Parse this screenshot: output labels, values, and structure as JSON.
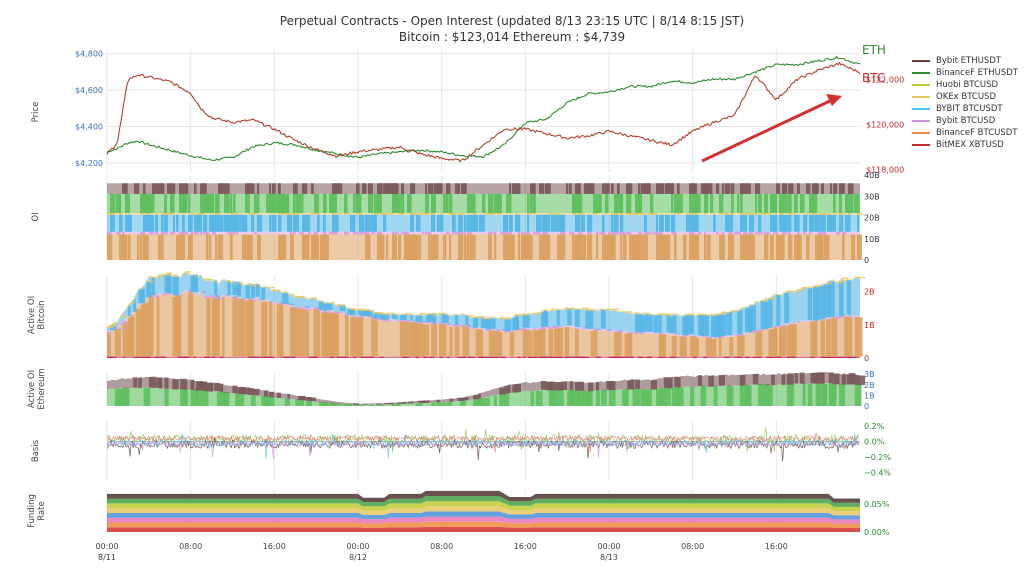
{
  "header": {
    "title": "Perpetual Contracts - Open Interest   (updated   8/13 23:15 UTC   |   8/14 8:15 JST)",
    "subtitle": "Bitcoin : $123,014     Ethereum : $4,739"
  },
  "colors": {
    "eth_line": "#2e8b2e",
    "btc_line": "#b0412e",
    "arrow": "#d32f2f",
    "left_axis": "#3b6fc4",
    "right_axis_btc": "#c62828",
    "grid": "#e6e6e6"
  },
  "chart_data": [
    {
      "id": "price",
      "type": "line",
      "ylabel": "Price",
      "x_range_hours": [
        0,
        72
      ],
      "x_ticks": [
        {
          "h": 0,
          "label": "00:00",
          "sub": "8/11"
        },
        {
          "h": 8,
          "label": "08:00",
          "sub": ""
        },
        {
          "h": 16,
          "label": "16:00",
          "sub": ""
        },
        {
          "h": 24,
          "label": "00:00",
          "sub": "8/12"
        },
        {
          "h": 32,
          "label": "08:00",
          "sub": ""
        },
        {
          "h": 40,
          "label": "16:00",
          "sub": ""
        },
        {
          "h": 48,
          "label": "00:00",
          "sub": "8/13"
        },
        {
          "h": 56,
          "label": "08:00",
          "sub": ""
        },
        {
          "h": 64,
          "label": "16:00",
          "sub": ""
        }
      ],
      "left_axis": {
        "unit": "ETH",
        "ylim": [
          4150,
          4820
        ],
        "ticks": [
          "$4,200",
          "$4,400",
          "$4,600",
          "$4,800"
        ],
        "tick_values": [
          4200,
          4400,
          4600,
          4800
        ]
      },
      "right_axis": {
        "unit": "BTC",
        "ylim": [
          117900,
          123300
        ],
        "ticks": [
          "$118,000",
          "$120,000",
          "$122,000"
        ],
        "tick_values": [
          118000,
          120000,
          122000
        ]
      },
      "series": [
        {
          "name": "ETH",
          "axis": "left",
          "color": "#2e8b2e",
          "x": [
            0,
            1,
            2,
            3,
            4,
            5,
            6,
            8,
            10,
            12,
            14,
            16,
            18,
            20,
            22,
            24,
            26,
            28,
            30,
            32,
            34,
            36,
            38,
            40,
            42,
            44,
            46,
            48,
            50,
            52,
            54,
            56,
            58,
            60,
            62,
            64,
            66,
            68,
            70,
            72
          ],
          "y": [
            4260,
            4280,
            4310,
            4320,
            4300,
            4285,
            4270,
            4240,
            4215,
            4230,
            4290,
            4310,
            4300,
            4270,
            4250,
            4230,
            4250,
            4260,
            4270,
            4260,
            4240,
            4235,
            4300,
            4420,
            4440,
            4530,
            4580,
            4590,
            4620,
            4620,
            4650,
            4640,
            4660,
            4660,
            4700,
            4740,
            4740,
            4760,
            4780,
            4740
          ]
        },
        {
          "name": "BTC",
          "axis": "right",
          "color": "#b0412e",
          "x": [
            0,
            1,
            2,
            3,
            4,
            5,
            6,
            8,
            9,
            10,
            12,
            14,
            16,
            18,
            20,
            22,
            24,
            26,
            28,
            30,
            32,
            34,
            36,
            38,
            40,
            42,
            44,
            46,
            48,
            50,
            52,
            54,
            56,
            58,
            60,
            62,
            64,
            66,
            68,
            70,
            72
          ],
          "y": [
            118700,
            119200,
            122000,
            122200,
            122100,
            122000,
            121900,
            121400,
            120700,
            120300,
            120100,
            120200,
            119800,
            119300,
            118900,
            118600,
            118800,
            118900,
            119000,
            118700,
            118500,
            118400,
            119100,
            119800,
            119800,
            119600,
            119400,
            119500,
            119700,
            119500,
            119300,
            119100,
            119700,
            120100,
            120400,
            122200,
            121100,
            122000,
            122400,
            122700,
            122300
          ]
        }
      ],
      "annotations": [
        {
          "text": "ETH",
          "color": "#2e8b2e"
        },
        {
          "text": "BTC",
          "color": "#c62828"
        }
      ]
    },
    {
      "id": "oi",
      "type": "area",
      "ylabel": "OI",
      "ylim": [
        0,
        40
      ],
      "ticks": [
        "0",
        "10B",
        "20B",
        "30B",
        "40B"
      ],
      "tick_values": [
        0,
        10,
        20,
        30,
        40
      ],
      "series": [
        {
          "name": "BinanceF BTCUSDT",
          "color": "#dba060",
          "value": 12
        },
        {
          "name": "Bybit BTCUSD",
          "color": "#d8a0d8",
          "value": 1.3
        },
        {
          "name": "BYBIT BTCUSDT",
          "color": "#56b6e6",
          "value": 8
        },
        {
          "name": "OKEx BTCUSD",
          "color": "#e8c860",
          "value": 0.8
        },
        {
          "name": "BinanceF ETHUSDT",
          "color": "#5fbf5f",
          "value": 9
        },
        {
          "name": "Bybit ETHUSDT",
          "color": "#7a5a5a",
          "value": 5
        }
      ]
    },
    {
      "id": "active_btc",
      "type": "area",
      "ylabel": "Active OI Bitcoin",
      "ylim": [
        0,
        2.5
      ],
      "ticks": [
        "0",
        "1B",
        "2B"
      ],
      "tick_values": [
        0,
        1,
        2
      ],
      "x": [
        0,
        1,
        2,
        4,
        6,
        8,
        10,
        12,
        14,
        16,
        18,
        20,
        22,
        24,
        26,
        28,
        30,
        32,
        34,
        36,
        38,
        40,
        42,
        44,
        46,
        48,
        50,
        52,
        54,
        56,
        58,
        60,
        62,
        64,
        66,
        68,
        70,
        72
      ],
      "series": [
        {
          "name": "BitMEX XBTUSD",
          "color": "#c2185b",
          "values": [
            0.04,
            0.04,
            0.04,
            0.04,
            0.04,
            0.04,
            0.04,
            0.04,
            0.04,
            0.04,
            0.04,
            0.04,
            0.04,
            0.04,
            0.04,
            0.04,
            0.04,
            0.04,
            0.04,
            0.04,
            0.04,
            0.04,
            0.04,
            0.04,
            0.04,
            0.04,
            0.04,
            0.04,
            0.04,
            0.04,
            0.04,
            0.04,
            0.04,
            0.04,
            0.04,
            0.04,
            0.04,
            0.04
          ]
        },
        {
          "name": "BinanceF BTCUSDT",
          "color": "#dba060",
          "values": [
            0.7,
            0.85,
            1.2,
            1.8,
            1.85,
            1.9,
            1.8,
            1.75,
            1.7,
            1.6,
            1.5,
            1.4,
            1.3,
            1.2,
            1.1,
            1.05,
            1.0,
            0.95,
            0.9,
            0.8,
            0.75,
            0.8,
            0.85,
            0.9,
            0.8,
            0.75,
            0.7,
            0.7,
            0.65,
            0.6,
            0.55,
            0.6,
            0.75,
            0.9,
            1.0,
            1.1,
            1.2,
            1.2
          ]
        },
        {
          "name": "Bybit BTCUSD",
          "color": "#d8a0d8",
          "values": [
            0.05,
            0.05,
            0.05,
            0.05,
            0.05,
            0.05,
            0.05,
            0.05,
            0.05,
            0.05,
            0.05,
            0.05,
            0.05,
            0.05,
            0.05,
            0.05,
            0.05,
            0.05,
            0.05,
            0.05,
            0.05,
            0.05,
            0.05,
            0.05,
            0.05,
            0.05,
            0.05,
            0.05,
            0.05,
            0.05,
            0.05,
            0.05,
            0.05,
            0.05,
            0.05,
            0.05,
            0.05,
            0.05
          ]
        },
        {
          "name": "BYBIT BTCUSDT",
          "color": "#56b6e6",
          "values": [
            0.1,
            0.15,
            0.3,
            0.5,
            0.55,
            0.5,
            0.45,
            0.4,
            0.4,
            0.35,
            0.3,
            0.25,
            0.2,
            0.15,
            0.15,
            0.15,
            0.2,
            0.25,
            0.3,
            0.3,
            0.35,
            0.4,
            0.45,
            0.5,
            0.55,
            0.6,
            0.55,
            0.5,
            0.55,
            0.6,
            0.65,
            0.7,
            0.8,
            0.9,
            0.95,
            1.0,
            1.05,
            1.1
          ]
        },
        {
          "name": "OKEx BTCUSD",
          "color": "#e8c860",
          "values": [
            0.04,
            0.04,
            0.04,
            0.04,
            0.04,
            0.04,
            0.04,
            0.04,
            0.04,
            0.04,
            0.04,
            0.04,
            0.04,
            0.04,
            0.04,
            0.04,
            0.04,
            0.04,
            0.04,
            0.04,
            0.04,
            0.04,
            0.04,
            0.04,
            0.04,
            0.04,
            0.04,
            0.04,
            0.04,
            0.04,
            0.04,
            0.04,
            0.04,
            0.04,
            0.04,
            0.04,
            0.04,
            0.04
          ]
        }
      ]
    },
    {
      "id": "active_eth",
      "type": "area",
      "ylabel": "Active OI Ethereum",
      "ylim": [
        0,
        3.2
      ],
      "ticks": [
        "0",
        "1B",
        "2B",
        "3B"
      ],
      "tick_values": [
        0,
        1,
        2,
        3
      ],
      "x": [
        0,
        2,
        4,
        6,
        8,
        10,
        12,
        14,
        16,
        18,
        20,
        22,
        24,
        26,
        28,
        30,
        32,
        34,
        36,
        38,
        40,
        42,
        44,
        46,
        48,
        50,
        52,
        54,
        56,
        58,
        60,
        62,
        64,
        66,
        68,
        70,
        72
      ],
      "series": [
        {
          "name": "BinanceF ETHUSDT",
          "color": "#5fbf5f",
          "values": [
            1.6,
            1.7,
            1.7,
            1.6,
            1.5,
            1.4,
            1.2,
            1.0,
            0.8,
            0.6,
            0.4,
            0.2,
            0.1,
            0.15,
            0.2,
            0.3,
            0.35,
            0.5,
            0.8,
            1.2,
            1.4,
            1.5,
            1.5,
            1.4,
            1.5,
            1.6,
            1.6,
            1.7,
            1.8,
            1.9,
            1.9,
            2.0,
            2.0,
            2.1,
            2.1,
            2.1,
            2.0
          ]
        },
        {
          "name": "Bybit ETHUSDT",
          "color": "#7a5a5a",
          "values": [
            0.8,
            0.9,
            1.0,
            1.0,
            0.9,
            0.8,
            0.7,
            0.6,
            0.5,
            0.4,
            0.3,
            0.2,
            0.1,
            0.1,
            0.15,
            0.2,
            0.25,
            0.3,
            0.5,
            0.7,
            0.8,
            0.8,
            0.8,
            0.8,
            0.8,
            0.9,
            0.9,
            1.0,
            1.0,
            1.0,
            1.0,
            1.0,
            1.0,
            1.0,
            1.0,
            1.0,
            0.9
          ]
        }
      ]
    },
    {
      "id": "basis",
      "type": "line",
      "ylabel": "Basis",
      "ylim": [
        -0.5,
        0.28
      ],
      "ticks": [
        "−0.4%",
        "−0.2%",
        "0.0%",
        "0.2%"
      ],
      "tick_values": [
        -0.4,
        -0.2,
        0,
        0.2
      ],
      "series": [
        {
          "name": "BinanceF ETHUSDT",
          "color": "#8bc34a",
          "offset": 0.03,
          "amp": 0.06
        },
        {
          "name": "BitMEX XBTUSD",
          "color": "#e57373",
          "offset": 0.04,
          "amp": 0.03
        },
        {
          "name": "Bybit ETHUSDT",
          "color": "#5d4037",
          "offset": -0.04,
          "amp": 0.05
        },
        {
          "name": "BYBIT BTCUSDT",
          "color": "#4fc3f7",
          "offset": -0.02,
          "amp": 0.04
        },
        {
          "name": "Bybit BTCUSD",
          "color": "#ce93d8",
          "offset": -0.03,
          "amp": 0.03
        }
      ]
    },
    {
      "id": "funding",
      "type": "area",
      "ylabel": "Funding Rate",
      "ylim": [
        0,
        0.075
      ],
      "ticks": [
        "0.00%",
        "0.05%"
      ],
      "tick_values": [
        0,
        0.05
      ],
      "bands": [
        {
          "name": "BitMEX XBTUSD",
          "color": "#d32f2f",
          "value": 0.0085
        },
        {
          "name": "BinanceF BTCUSDT",
          "color": "#ef8a3c",
          "value": 0.0085
        },
        {
          "name": "Bybit BTCUSD",
          "color": "#e573b7",
          "value": 0.0085
        },
        {
          "name": "BYBIT BTCUSDT",
          "color": "#4a90d9",
          "value": 0.0085
        },
        {
          "name": "OKEx BTCUSD",
          "color": "#e8c860",
          "value": 0.0085
        },
        {
          "name": "Huobi BTCUSD",
          "color": "#c0ca33",
          "value": 0.0085
        },
        {
          "name": "BinanceF ETHUSDT",
          "color": "#43a047",
          "value": 0.0085
        },
        {
          "name": "Bybit ETHUSDT",
          "color": "#4e342e",
          "value": 0.0085
        }
      ]
    }
  ],
  "legend": [
    {
      "name": "Bybit ETHUSDT",
      "color": "#5d4037"
    },
    {
      "name": "BinanceF ETHUSDT",
      "color": "#2e8b2e"
    },
    {
      "name": "Huobi BTCUSD",
      "color": "#c0ca33"
    },
    {
      "name": "OKEx BTCUSD",
      "color": "#e8c860"
    },
    {
      "name": "BYBIT BTCUSDT",
      "color": "#4fc3f7"
    },
    {
      "name": "Bybit BTCUSD",
      "color": "#ce93d8"
    },
    {
      "name": "BinanceF BTCUSDT",
      "color": "#ef8a3c"
    },
    {
      "name": "BitMEX XBTUSD",
      "color": "#c62828"
    }
  ]
}
